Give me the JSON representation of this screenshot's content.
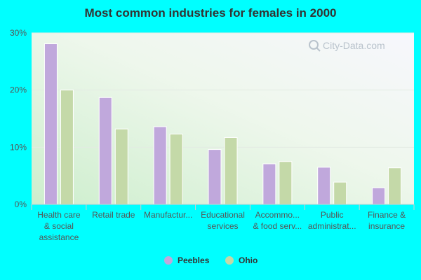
{
  "chart_data": {
    "type": "bar",
    "title": "Most common industries for females in 2000",
    "xlabel": "",
    "ylabel": "",
    "ylim": [
      0,
      30
    ],
    "yticks": [
      "0%",
      "10%",
      "20%",
      "30%"
    ],
    "categories": [
      [
        "Health care",
        "& social",
        "assistance"
      ],
      [
        "Retail trade"
      ],
      [
        "Manufactur..."
      ],
      [
        "Educational",
        "services"
      ],
      [
        "Accommo...",
        "& food serv..."
      ],
      [
        "Public",
        "administrat..."
      ],
      [
        "Finance &",
        "insurance"
      ]
    ],
    "series": [
      {
        "name": "Peebles",
        "color": "#c0a8dc",
        "values": [
          28.1,
          18.7,
          13.6,
          9.6,
          7.1,
          6.5,
          2.9
        ]
      },
      {
        "name": "Ohio",
        "color": "#c4d9a8",
        "values": [
          20.0,
          13.2,
          12.3,
          11.7,
          7.5,
          3.9,
          6.4
        ]
      }
    ],
    "grid": true,
    "legend": "bottom-center"
  },
  "watermark": {
    "text": "City-Data.com",
    "icon": "search-icon"
  }
}
